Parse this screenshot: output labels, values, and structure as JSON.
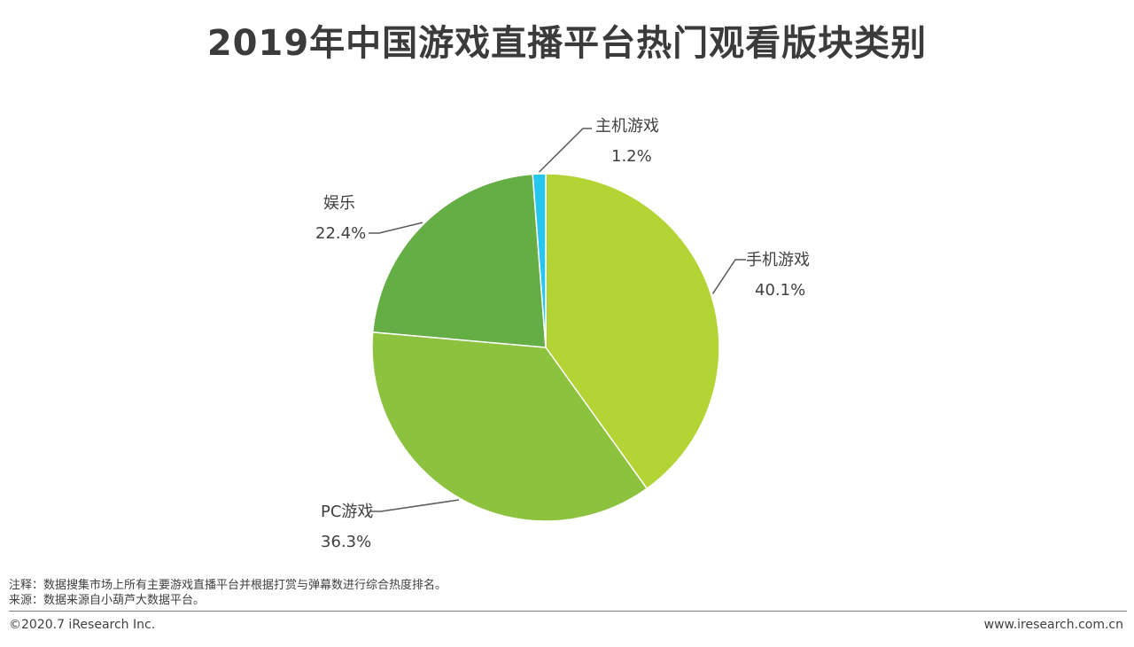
{
  "title": "2019年中国游戏直播平台热门观看版块类别",
  "chart_data": {
    "type": "pie",
    "title": "2019年中国游戏直播平台热门观看版块类别",
    "start_angle_deg": 0,
    "direction": "clockwise",
    "slices": [
      {
        "label": "手机游戏",
        "value": 40.1,
        "value_label": "40.1%",
        "color": "#b4d334"
      },
      {
        "label": "PC游戏",
        "value": 36.3,
        "value_label": "36.3%",
        "color": "#8dc23f"
      },
      {
        "label": "娱乐",
        "value": 22.4,
        "value_label": "22.4%",
        "color": "#65ad45"
      },
      {
        "label": "主机游戏",
        "value": 1.2,
        "value_label": "1.2%",
        "color": "#27c6ef"
      }
    ]
  },
  "footer": {
    "note": "注释：数据搜集市场上所有主要游戏直播平台并根据打赏与弹幕数进行综合热度排名。",
    "source": "来源：数据来源自小葫芦大数据平台。",
    "copyright": "©2020.7 iResearch Inc.",
    "website": "www.iresearch.com.cn"
  }
}
